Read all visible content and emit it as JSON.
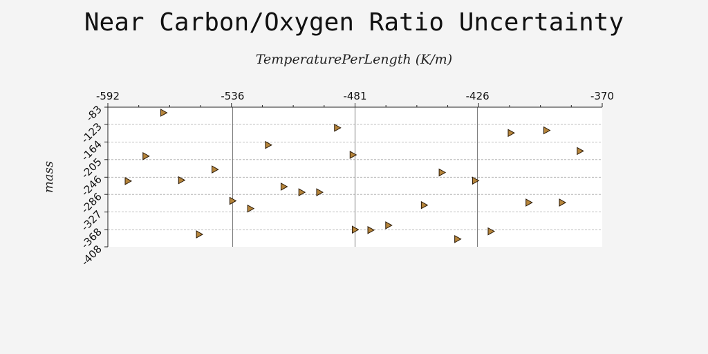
{
  "chart_data": {
    "type": "scatter",
    "title": "Near Carbon/Oxygen Ratio Uncertainty",
    "xlabel": "TemperaturePerLength (K/m)",
    "ylabel": "mass",
    "x_axis_position": "top",
    "xlim": [
      -592,
      -370
    ],
    "ylim": [
      -408,
      -83
    ],
    "y_inverted": true,
    "x_ticks": [
      "-592",
      "-536",
      "-481",
      "-426",
      "-370"
    ],
    "y_ticks": [
      "-83",
      "-123",
      "-164",
      "-205",
      "-246",
      "-286",
      "-327",
      "-368",
      "-408"
    ],
    "grid": {
      "x_major": true,
      "y_dashed": true
    },
    "marker": "triangle-right",
    "marker_color": "#b5843a",
    "points": [
      {
        "x": -567,
        "y": -96
      },
      {
        "x": -489,
        "y": -131
      },
      {
        "x": -411,
        "y": -143
      },
      {
        "x": -395,
        "y": -137
      },
      {
        "x": -520,
        "y": -171
      },
      {
        "x": -380,
        "y": -185
      },
      {
        "x": -482,
        "y": -194
      },
      {
        "x": -575,
        "y": -197
      },
      {
        "x": -544,
        "y": -228
      },
      {
        "x": -583,
        "y": -255
      },
      {
        "x": -559,
        "y": -253
      },
      {
        "x": -442,
        "y": -235
      },
      {
        "x": -427,
        "y": -254
      },
      {
        "x": -513,
        "y": -268
      },
      {
        "x": -505,
        "y": -281
      },
      {
        "x": -497,
        "y": -281
      },
      {
        "x": -536,
        "y": -301
      },
      {
        "x": -528,
        "y": -319
      },
      {
        "x": -450,
        "y": -311
      },
      {
        "x": -403,
        "y": -305
      },
      {
        "x": -388,
        "y": -305
      },
      {
        "x": -466,
        "y": -358
      },
      {
        "x": -474,
        "y": -369
      },
      {
        "x": -481,
        "y": -368
      },
      {
        "x": -420,
        "y": -372
      },
      {
        "x": -551,
        "y": -379
      },
      {
        "x": -435,
        "y": -390
      }
    ]
  }
}
